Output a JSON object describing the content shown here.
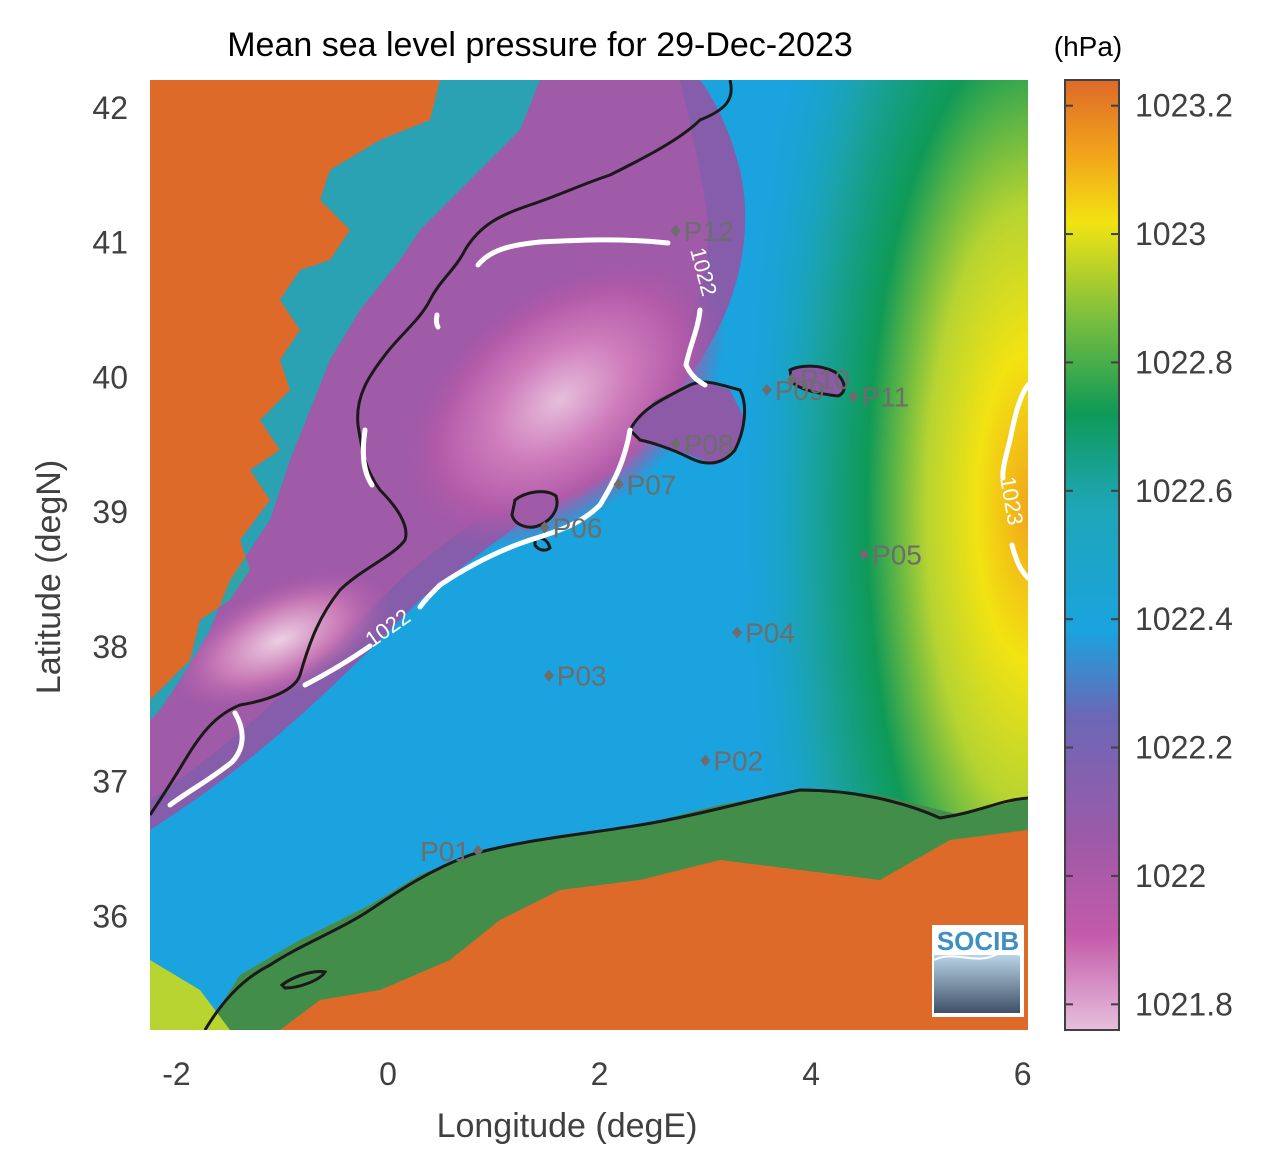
{
  "chart_data": {
    "type": "heatmap",
    "title": "Mean sea level pressure for 29-Dec-2023",
    "xlabel": "Longitude (degE)",
    "ylabel": "Latitude (degN)",
    "xlim": [
      -2.25,
      6.05
    ],
    "ylim": [
      35.15,
      42.2
    ],
    "x_ticks": [
      -2,
      0,
      2,
      4,
      6
    ],
    "x_tick_labels": [
      "-2",
      "0",
      "2",
      "4",
      "6"
    ],
    "y_ticks": [
      36,
      37,
      38,
      39,
      40,
      41,
      42
    ],
    "y_tick_labels": [
      "36",
      "37",
      "38",
      "39",
      "40",
      "41",
      "42"
    ],
    "colorbar": {
      "unit": "(hPa)",
      "range": [
        1021.76,
        1023.24
      ],
      "ticks": [
        1021.8,
        1022,
        1022.2,
        1022.4,
        1022.6,
        1022.8,
        1023,
        1023.2
      ],
      "tick_labels": [
        "1021.8",
        "1022",
        "1022.2",
        "1022.4",
        "1022.6",
        "1022.8",
        "1023",
        "1023.2"
      ],
      "colors": [
        "#e6bfdc",
        "#c45aaa",
        "#8c5aa6",
        "#4e78c2",
        "#1aa3de",
        "#1eaab4",
        "#0f9a57",
        "#86c03c",
        "#f2e312",
        "#f2a51a",
        "#de6a2a"
      ],
      "land_color": "#de6a2a"
    },
    "contours": [
      {
        "label": "1022",
        "level": 1022
      },
      {
        "label": "1023",
        "level": 1023
      }
    ],
    "stations": [
      {
        "name": "P01",
        "lon": 0.85,
        "lat": 36.48
      },
      {
        "name": "P02",
        "lon": 3.0,
        "lat": 37.15
      },
      {
        "name": "P03",
        "lon": 1.52,
        "lat": 37.78
      },
      {
        "name": "P04",
        "lon": 3.3,
        "lat": 38.1
      },
      {
        "name": "P05",
        "lon": 4.5,
        "lat": 38.68
      },
      {
        "name": "P06",
        "lon": 1.48,
        "lat": 38.88
      },
      {
        "name": "P07",
        "lon": 2.18,
        "lat": 39.2
      },
      {
        "name": "P08",
        "lon": 2.72,
        "lat": 39.5
      },
      {
        "name": "P09",
        "lon": 3.58,
        "lat": 39.9
      },
      {
        "name": "P10",
        "lon": 3.82,
        "lat": 39.98
      },
      {
        "name": "P11",
        "lon": 4.4,
        "lat": 39.85
      },
      {
        "name": "P12",
        "lon": 2.72,
        "lat": 41.08
      }
    ],
    "grid": false,
    "legend": "colorbar-right"
  },
  "logo": {
    "text": "SOCIB"
  }
}
